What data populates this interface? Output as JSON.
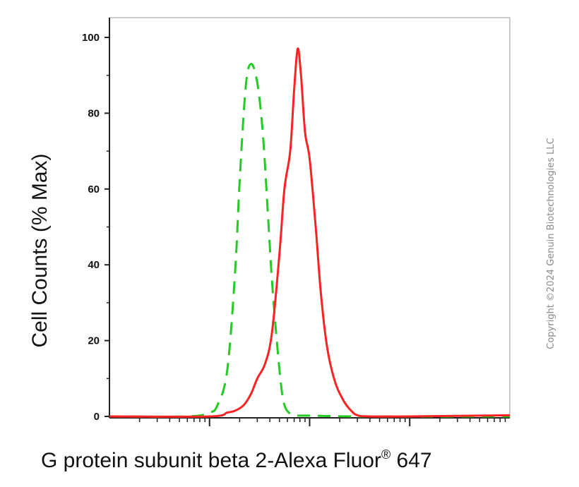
{
  "chart_data": {
    "type": "line",
    "title": "",
    "xlabel": "G protein subunit beta 2-Alexa Fluor",
    "xlabel_superscript": "®",
    "xlabel_suffix": "647",
    "ylabel": "Cell Counts (% Max)",
    "x_scale": "log",
    "xlim": [
      10,
      100000
    ],
    "ylim": [
      0,
      100
    ],
    "yticks": [
      0,
      20,
      40,
      60,
      80,
      100
    ],
    "grid": false,
    "legend": "none",
    "series": [
      {
        "color": "#22cc22",
        "style": "dashed",
        "x": [
          10,
          60,
          100,
          120,
          150,
          180,
          200,
          230,
          260,
          300,
          340,
          380,
          420,
          470,
          520,
          560,
          620,
          700,
          800,
          1000,
          3000,
          100000
        ],
        "y": [
          0,
          0,
          1,
          3,
          12,
          38,
          62,
          87,
          93,
          88,
          75,
          55,
          36,
          20,
          8,
          3,
          1,
          0.3,
          0.2,
          0.2,
          0,
          0
        ]
      },
      {
        "color": "#ff2222",
        "style": "solid",
        "x": [
          10,
          100,
          150,
          180,
          220,
          260,
          300,
          360,
          420,
          500,
          560,
          640,
          700,
          760,
          820,
          900,
          1000,
          1150,
          1300,
          1500,
          1800,
          2200,
          2600,
          3000,
          4000,
          10000,
          100000
        ],
        "y": [
          0,
          0,
          1,
          1.5,
          3,
          6,
          10,
          14,
          22,
          43,
          60,
          70,
          86,
          97,
          90,
          75,
          68,
          50,
          32,
          18,
          9,
          4,
          1.5,
          0.3,
          0,
          0,
          0.3
        ]
      }
    ]
  },
  "watermark": "Copyright ©2024 Genuin Biotechnologies LLC"
}
